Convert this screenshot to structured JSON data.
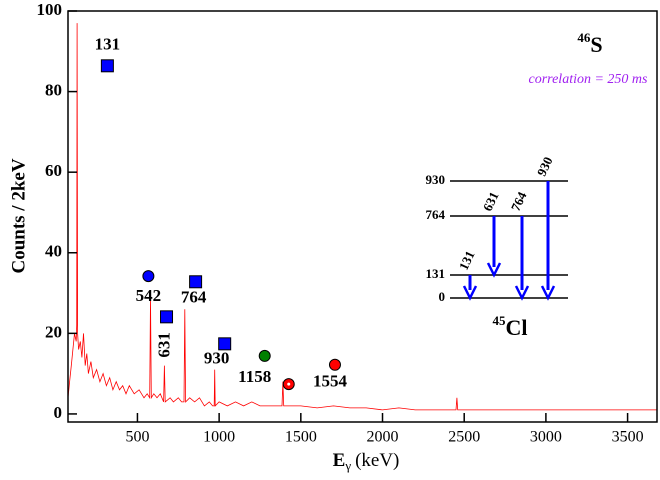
{
  "chart_data": {
    "type": "line",
    "title": {
      "mass": "46",
      "element": "S"
    },
    "annotation": "correlation = 250 ms",
    "y_label": "Counts / 2keV",
    "x_label": {
      "symbol": "E",
      "subscript": "γ",
      "unit": "(keV)"
    },
    "xlim": [
      75,
      3680
    ],
    "ylim": [
      -2,
      100
    ],
    "xticks": [
      500,
      1000,
      1500,
      2000,
      2500,
      3000,
      3500
    ],
    "yticks": [
      0,
      20,
      40,
      60,
      80,
      100
    ],
    "x": [
      75,
      85,
      95,
      105,
      115,
      125,
      128,
      131,
      134,
      140,
      150,
      160,
      170,
      180,
      190,
      200,
      215,
      230,
      250,
      270,
      290,
      310,
      330,
      350,
      370,
      390,
      410,
      430,
      450,
      480,
      510,
      540,
      560,
      575,
      580,
      585,
      600,
      620,
      640,
      660,
      665,
      670,
      700,
      720,
      750,
      770,
      785,
      790,
      795,
      820,
      850,
      880,
      910,
      940,
      960,
      970,
      973,
      976,
      1000,
      1050,
      1100,
      1150,
      1200,
      1250,
      1300,
      1350,
      1385,
      1390,
      1395,
      1450,
      1500,
      1600,
      1700,
      1800,
      1900,
      2000,
      2100,
      2200,
      2300,
      2400,
      2450,
      2455,
      2460,
      2500,
      2600,
      2700,
      2800,
      2900,
      3000,
      3100,
      3200,
      3300,
      3400,
      3500,
      3600,
      3680
    ],
    "series": [
      {
        "color": "#ff0000",
        "values": [
          4,
          8,
          12,
          16,
          20,
          18,
          22,
          97,
          20,
          16,
          18,
          14,
          20,
          12,
          15,
          10,
          13,
          9,
          11,
          8,
          10,
          7,
          9,
          6,
          8,
          6,
          7,
          5,
          7,
          5,
          6,
          4,
          5,
          4,
          29,
          4,
          5,
          4,
          5,
          3,
          12,
          3,
          4,
          3,
          4,
          3,
          3,
          26,
          3,
          4,
          3,
          4,
          2,
          3,
          2,
          2,
          11,
          2,
          3,
          2,
          3,
          2,
          3,
          2,
          2,
          2,
          2,
          8,
          2,
          2,
          2,
          1.5,
          2,
          1.5,
          1.5,
          1,
          1.5,
          1,
          1,
          1,
          1,
          4,
          1,
          1,
          1,
          1,
          1,
          1,
          1,
          1,
          1,
          1,
          1,
          1,
          1,
          1
        ]
      }
    ],
    "markers": [
      {
        "x": 316,
        "y": 86.4,
        "shape": "square",
        "color": "#0000ff",
        "label": "131"
      },
      {
        "x": 567,
        "y": 34.2,
        "shape": "circle",
        "color": "#0000ff",
        "label": "542"
      },
      {
        "x": 678,
        "y": 24.1,
        "shape": "square",
        "color": "#0000ff",
        "label": "631"
      },
      {
        "x": 856,
        "y": 32.8,
        "shape": "square",
        "color": "#0000ff",
        "label": "764"
      },
      {
        "x": 1034,
        "y": 17.4,
        "shape": "square",
        "color": "#0000ff",
        "label": "930"
      },
      {
        "x": 1279,
        "y": 14.4,
        "shape": "circle",
        "color": "#008000",
        "label": "1158"
      },
      {
        "x": 1426,
        "y": 7.4,
        "shape": "dotted-circle",
        "color": "#ff0000"
      },
      {
        "x": 1709,
        "y": 12.2,
        "shape": "circle",
        "color": "#ff0000",
        "label": "1554"
      }
    ],
    "level_scheme": {
      "nucleus": {
        "mass": "45",
        "element": "Cl"
      },
      "levels": [
        0,
        131,
        764,
        930
      ],
      "transitions": [
        {
          "energy": 131,
          "from": 131,
          "to": 0
        },
        {
          "energy": 631,
          "from": 764,
          "to": 131
        },
        {
          "energy": 764,
          "from": 764,
          "to": 0
        },
        {
          "energy": 930,
          "from": 930,
          "to": 0
        }
      ],
      "color": "#0000ff"
    }
  }
}
